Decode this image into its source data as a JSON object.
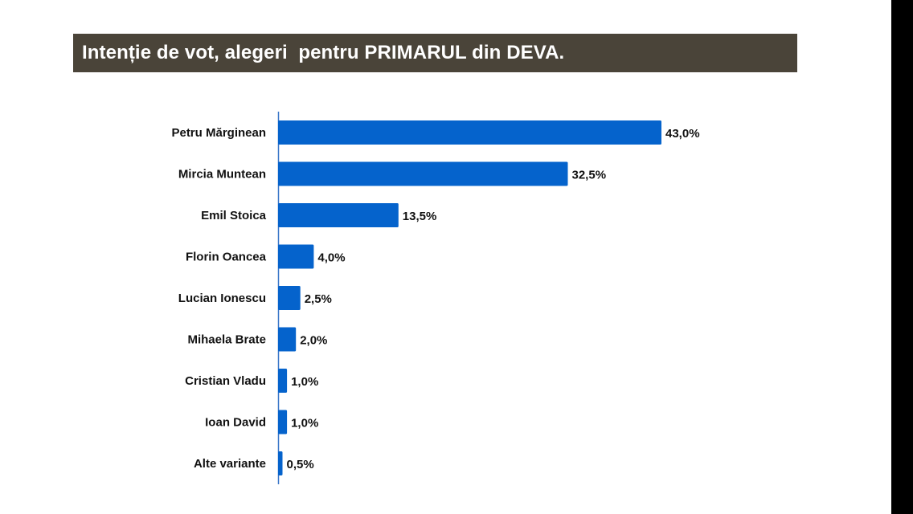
{
  "title": "Intenție de vot, alegeri  pentru PRIMARUL din DEVA.",
  "colors": {
    "bar": "#0563cc",
    "axis": "#3a77c8",
    "title_background": "#4a4439",
    "title_text": "#ffffff"
  },
  "chart_data": {
    "type": "bar",
    "orientation": "horizontal",
    "categories": [
      "Petru Mărginean",
      "Mircia Muntean",
      "Emil Stoica",
      "Florin Oancea",
      "Lucian Ionescu",
      "Mihaela Brate",
      "Cristian Vladu",
      "Ioan David",
      "Alte variante"
    ],
    "values": [
      43.0,
      32.5,
      13.5,
      4.0,
      2.5,
      2.0,
      1.0,
      1.0,
      0.5
    ],
    "value_labels": [
      "43,0%",
      "32,5%",
      "13,5%",
      "4,0%",
      "2,5%",
      "2,0%",
      "1,0%",
      "1,0%",
      "0,5%"
    ],
    "unit": "%",
    "xlim": [
      0,
      43
    ],
    "grid": false,
    "legend": "none",
    "title": "Intenție de vot, alegeri  pentru PRIMARUL din DEVA."
  }
}
